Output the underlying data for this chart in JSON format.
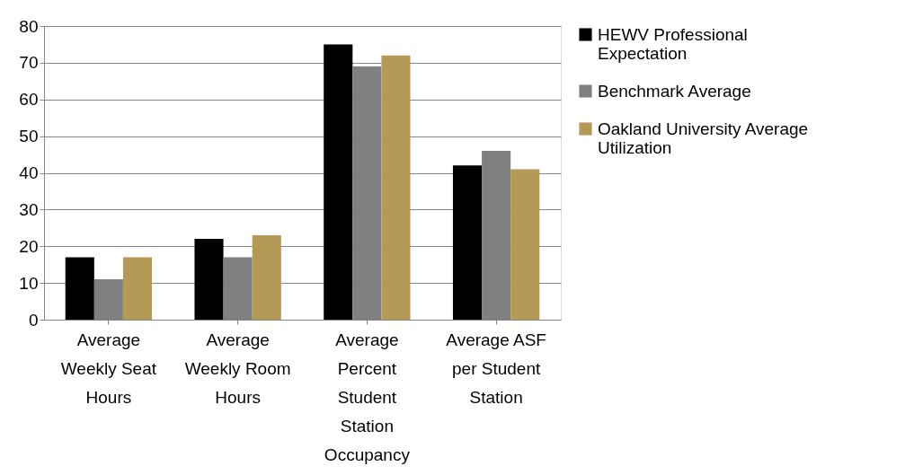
{
  "chart_data": {
    "type": "bar",
    "categories": [
      "Average Weekly Seat Hours",
      "Average Weekly Room Hours",
      "Average Percent Student Station Occupancy",
      "Average ASF per Student Station"
    ],
    "series": [
      {
        "name": "HEWV Professional Expectation",
        "color": "#000000",
        "values": [
          17,
          22,
          75,
          42
        ]
      },
      {
        "name": "Benchmark Average",
        "color": "#808080",
        "values": [
          11,
          17,
          69,
          46
        ]
      },
      {
        "name": "Oakland University Average Utilization",
        "color": "#b59a57",
        "values": [
          17,
          23,
          72,
          41
        ]
      }
    ],
    "ylim": [
      0,
      80
    ],
    "yticks": [
      0,
      10,
      20,
      30,
      40,
      50,
      60,
      70,
      80
    ],
    "grid": "y",
    "legend": "right"
  }
}
